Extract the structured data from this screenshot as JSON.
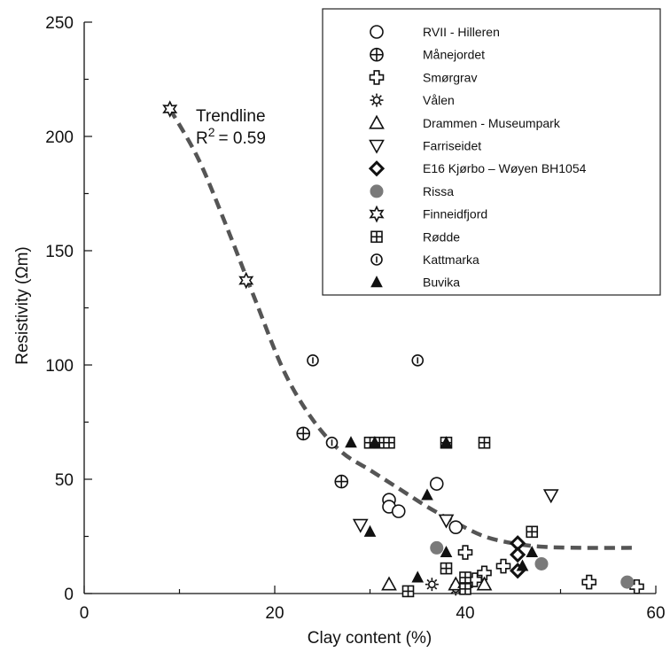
{
  "chart_data": {
    "type": "scatter",
    "xlabel": "Clay content (%)",
    "ylabel": "Resistivity (Ωm)",
    "xlim": [
      0,
      60
    ],
    "ylim": [
      0,
      250
    ],
    "xticks": [
      0,
      20,
      40,
      60
    ],
    "yticks": [
      0,
      50,
      100,
      150,
      200,
      250
    ],
    "grid": false,
    "legend_position": "top-right",
    "trendline": {
      "label": "Trendline",
      "r2_text": "= 0.59",
      "r2_symbol": "R",
      "r2_exp": "2",
      "color": "#555555",
      "points": [
        [
          9,
          212
        ],
        [
          12,
          190
        ],
        [
          15,
          160
        ],
        [
          18,
          128
        ],
        [
          21,
          97
        ],
        [
          24,
          76
        ],
        [
          27,
          62
        ],
        [
          30,
          54
        ],
        [
          33,
          46
        ],
        [
          36,
          38
        ],
        [
          39,
          31
        ],
        [
          42,
          25
        ],
        [
          45,
          22
        ],
        [
          48,
          20.5
        ],
        [
          52,
          20
        ],
        [
          58,
          20
        ]
      ]
    },
    "series": [
      {
        "name": "RVII - Hilleren",
        "marker": "circle",
        "points": [
          [
            32,
            41
          ],
          [
            32,
            38
          ],
          [
            33,
            36
          ],
          [
            37,
            48
          ],
          [
            39,
            29
          ]
        ]
      },
      {
        "name": "Månejordet",
        "marker": "circle-plus",
        "points": [
          [
            23,
            70
          ],
          [
            27,
            49
          ]
        ]
      },
      {
        "name": "Smørgrav",
        "marker": "plus",
        "points": [
          [
            40,
            18
          ],
          [
            41,
            6
          ],
          [
            42,
            9
          ],
          [
            44,
            12
          ],
          [
            53,
            5
          ],
          [
            58,
            3
          ]
        ]
      },
      {
        "name": "Vålen",
        "marker": "sun",
        "points": [
          [
            36.5,
            4
          ],
          [
            39,
            2
          ]
        ]
      },
      {
        "name": "Drammen - Museumpark",
        "marker": "triangle-up",
        "points": [
          [
            32,
            4
          ],
          [
            39,
            4
          ],
          [
            40,
            5
          ],
          [
            42,
            4
          ]
        ]
      },
      {
        "name": "Farriseidet",
        "marker": "triangle-down",
        "points": [
          [
            29,
            30
          ],
          [
            38,
            32
          ],
          [
            49,
            43
          ]
        ]
      },
      {
        "name": "E16 Kjørbo – Wøyen BH1054",
        "marker": "diamond",
        "points": [
          [
            45.5,
            22
          ],
          [
            45.5,
            17
          ],
          [
            45.5,
            10
          ]
        ]
      },
      {
        "name": "Rissa",
        "marker": "filled-circle",
        "points": [
          [
            37,
            20
          ],
          [
            48,
            13
          ],
          [
            57,
            5
          ]
        ]
      },
      {
        "name": "Finneidfjord",
        "marker": "star",
        "points": [
          [
            9,
            212
          ],
          [
            17,
            137
          ]
        ]
      },
      {
        "name": "Rødde",
        "marker": "square-cross",
        "points": [
          [
            30,
            66
          ],
          [
            31,
            66
          ],
          [
            32,
            66
          ],
          [
            38,
            66
          ],
          [
            42,
            66
          ],
          [
            47,
            27
          ],
          [
            38,
            11
          ],
          [
            34,
            1
          ],
          [
            40,
            7
          ],
          [
            40,
            2
          ]
        ]
      },
      {
        "name": "Kattmarka",
        "marker": "circle-bar",
        "points": [
          [
            24,
            102
          ],
          [
            35,
            102
          ],
          [
            26,
            66
          ]
        ]
      },
      {
        "name": "Buvika",
        "marker": "filled-triangle",
        "points": [
          [
            28,
            66
          ],
          [
            30.5,
            66
          ],
          [
            30,
            27
          ],
          [
            36,
            43
          ],
          [
            38,
            66
          ],
          [
            38,
            18
          ],
          [
            35,
            7
          ],
          [
            46,
            12
          ],
          [
            47,
            18
          ]
        ]
      }
    ]
  }
}
